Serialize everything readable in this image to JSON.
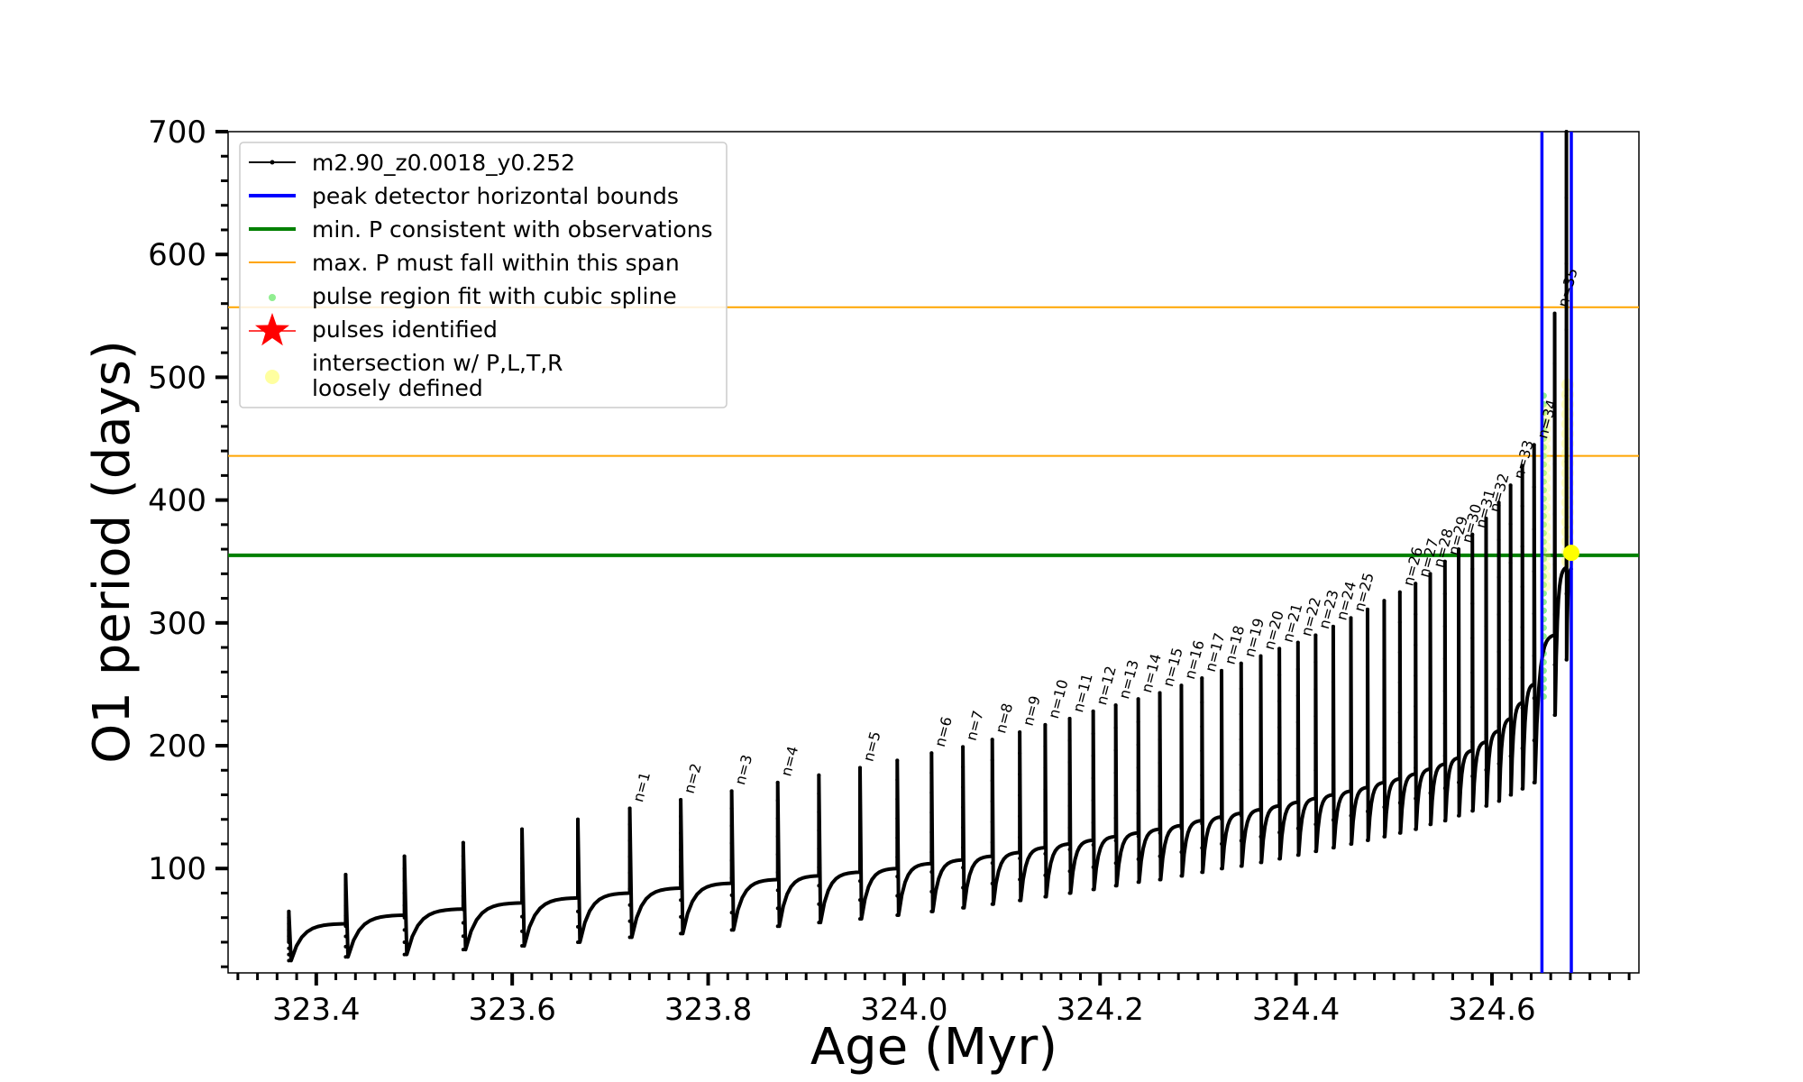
{
  "chart_data": {
    "type": "line",
    "title": "",
    "xlabel": "Age (Myr)",
    "ylabel": "O1 period (days)",
    "xlim": [
      323.31,
      324.75
    ],
    "ylim": [
      15,
      700
    ],
    "xticks": [
      "323.4",
      "323.6",
      "323.8",
      "324.0",
      "324.2",
      "324.4",
      "324.6"
    ],
    "yticks": [
      "100",
      "200",
      "300",
      "400",
      "500",
      "600",
      "700"
    ],
    "grid": false,
    "legend_position": "top-left",
    "legend": [
      {
        "label": "m2.90_z0.0018_y0.252",
        "marker": "line-dot",
        "color": "#000000"
      },
      {
        "label": "peak detector horizontal bounds",
        "marker": "line",
        "color": "#0000ff"
      },
      {
        "label": "min. P consistent with observations",
        "marker": "line",
        "color": "#008000"
      },
      {
        "label": "max. P must fall within this span",
        "marker": "thin-line",
        "color": "#ffa500"
      },
      {
        "label": "pulse region fit with cubic spline",
        "marker": "dot",
        "color": "#90ee90"
      },
      {
        "label": "pulses identified",
        "marker": "star",
        "color": "#ff0000"
      },
      {
        "label": "intersection w/ P,L,T,R\nloosely defined",
        "marker": "circle",
        "color": "#ffffa0"
      }
    ],
    "series": [
      {
        "name": "m2.90_z0.0018_y0.252",
        "color": "#000000",
        "pulses": [
          {
            "age": 323.372,
            "peak": 65,
            "dip": 25,
            "pre": 40
          },
          {
            "age": 323.43,
            "peak": 95,
            "dip": 28,
            "pre": 55
          },
          {
            "age": 323.49,
            "peak": 110,
            "dip": 30,
            "pre": 62
          },
          {
            "age": 323.55,
            "peak": 121,
            "dip": 34,
            "pre": 67
          },
          {
            "age": 323.61,
            "peak": 132,
            "dip": 37,
            "pre": 72
          },
          {
            "age": 323.667,
            "peak": 140,
            "dip": 40,
            "pre": 76
          },
          {
            "age": 323.72,
            "peak": 149,
            "dip": 44,
            "pre": 80,
            "label": "n=1"
          },
          {
            "age": 323.772,
            "peak": 156,
            "dip": 47,
            "pre": 84,
            "label": "n=2"
          },
          {
            "age": 323.824,
            "peak": 163,
            "dip": 50,
            "pre": 88,
            "label": "n=3"
          },
          {
            "age": 323.871,
            "peak": 170,
            "dip": 53,
            "pre": 91,
            "label": "n=4"
          },
          {
            "age": 323.913,
            "peak": 176,
            "dip": 56,
            "pre": 94
          },
          {
            "age": 323.955,
            "peak": 182,
            "dip": 59,
            "pre": 97,
            "label": "n=5"
          },
          {
            "age": 323.993,
            "peak": 188,
            "dip": 62,
            "pre": 100
          },
          {
            "age": 324.028,
            "peak": 194,
            "dip": 65,
            "pre": 104,
            "label": "n=6"
          },
          {
            "age": 324.06,
            "peak": 199,
            "dip": 68,
            "pre": 107,
            "label": "n=7"
          },
          {
            "age": 324.09,
            "peak": 205,
            "dip": 71,
            "pre": 110,
            "label": "n=8"
          },
          {
            "age": 324.118,
            "peak": 211,
            "dip": 74,
            "pre": 113,
            "label": "n=9"
          },
          {
            "age": 324.144,
            "peak": 217,
            "dip": 77,
            "pre": 117,
            "label": "n=10"
          },
          {
            "age": 324.169,
            "peak": 222,
            "dip": 80,
            "pre": 120,
            "label": "n=11"
          },
          {
            "age": 324.193,
            "peak": 228,
            "dip": 83,
            "pre": 123,
            "label": "n=12"
          },
          {
            "age": 324.216,
            "peak": 233,
            "dip": 86,
            "pre": 126,
            "label": "n=13"
          },
          {
            "age": 324.239,
            "peak": 238,
            "dip": 89,
            "pre": 129,
            "label": "n=14"
          },
          {
            "age": 324.261,
            "peak": 243,
            "dip": 91,
            "pre": 132,
            "label": "n=15"
          },
          {
            "age": 324.283,
            "peak": 249,
            "dip": 94,
            "pre": 135,
            "label": "n=16"
          },
          {
            "age": 324.304,
            "peak": 255,
            "dip": 97,
            "pre": 139,
            "label": "n=17"
          },
          {
            "age": 324.324,
            "peak": 261,
            "dip": 100,
            "pre": 142,
            "label": "n=18"
          },
          {
            "age": 324.344,
            "peak": 267,
            "dip": 102,
            "pre": 145,
            "label": "n=19"
          },
          {
            "age": 324.364,
            "peak": 273,
            "dip": 105,
            "pre": 148,
            "label": "n=20"
          },
          {
            "age": 324.383,
            "peak": 279,
            "dip": 108,
            "pre": 151,
            "label": "n=21"
          },
          {
            "age": 324.402,
            "peak": 284,
            "dip": 111,
            "pre": 154,
            "label": "n=22"
          },
          {
            "age": 324.42,
            "peak": 290,
            "dip": 114,
            "pre": 157,
            "label": "n=23"
          },
          {
            "age": 324.438,
            "peak": 297,
            "dip": 117,
            "pre": 160,
            "label": "n=24"
          },
          {
            "age": 324.456,
            "peak": 304,
            "dip": 120,
            "pre": 163,
            "label": "n=25"
          },
          {
            "age": 324.473,
            "peak": 311,
            "dip": 123,
            "pre": 166
          },
          {
            "age": 324.49,
            "peak": 318,
            "dip": 126,
            "pre": 170
          },
          {
            "age": 324.506,
            "peak": 325,
            "dip": 129,
            "pre": 173,
            "label": "n=26"
          },
          {
            "age": 324.522,
            "peak": 332,
            "dip": 132,
            "pre": 177,
            "label": "n=27"
          },
          {
            "age": 324.537,
            "peak": 340,
            "dip": 136,
            "pre": 181,
            "label": "n=28"
          },
          {
            "age": 324.552,
            "peak": 350,
            "dip": 139,
            "pre": 185,
            "label": "n=29"
          },
          {
            "age": 324.566,
            "peak": 360,
            "dip": 143,
            "pre": 190,
            "label": "n=30"
          },
          {
            "age": 324.58,
            "peak": 372,
            "dip": 147,
            "pre": 196,
            "label": "n=31"
          },
          {
            "age": 324.594,
            "peak": 385,
            "dip": 151,
            "pre": 203,
            "label": "n=32"
          },
          {
            "age": 324.607,
            "peak": 398,
            "dip": 155,
            "pre": 212
          },
          {
            "age": 324.619,
            "peak": 412,
            "dip": 160,
            "pre": 222,
            "label": "n=33"
          },
          {
            "age": 324.631,
            "peak": 428,
            "dip": 165,
            "pre": 235
          },
          {
            "age": 324.643,
            "peak": 445,
            "dip": 170,
            "pre": 250,
            "label": "n=34"
          },
          {
            "age": 324.664,
            "peak": 552,
            "dip": 225,
            "pre": 290,
            "label": "n=35"
          },
          {
            "age": 324.676,
            "peak": 700,
            "dip": 270,
            "pre": 345
          }
        ]
      }
    ],
    "reference_lines": {
      "peak_detector_horizontal_bounds": {
        "x": [
          324.651,
          324.681
        ],
        "color": "#0000ff"
      },
      "min_P_consistent_with_observations": {
        "y": 355,
        "color": "#008000"
      },
      "max_P_must_fall_within_this_span": {
        "y": [
          436,
          557
        ],
        "color": "#ffa500"
      }
    },
    "intersection_point": {
      "x": 324.681,
      "y": 357,
      "color": "#ffff00"
    }
  }
}
